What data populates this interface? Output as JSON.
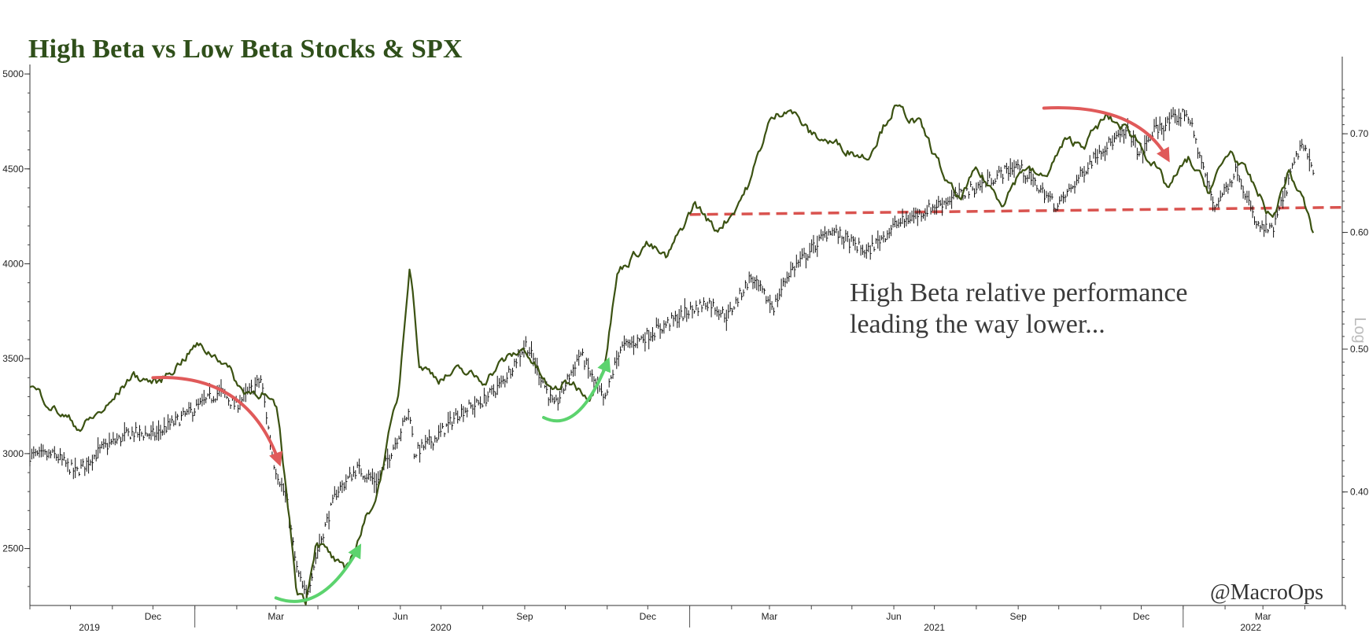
{
  "chart_data": {
    "type": "line",
    "title": "High Beta vs Low Beta Stocks & SPX",
    "left_axis": {
      "ticks": [
        2500,
        3000,
        3500,
        4000,
        4500,
        5000
      ],
      "range": [
        2200,
        5050
      ]
    },
    "right_axis": {
      "label": "Log",
      "scale": "log",
      "ticks": [
        0.4,
        0.5,
        0.6,
        0.7
      ],
      "tick_labels": [
        "0.40",
        "0.50",
        "0.60",
        "0.70"
      ],
      "range": [
        0.335,
        0.78
      ]
    },
    "x_axis": {
      "range": [
        "2019-09-01",
        "2022-05-01"
      ],
      "month_ticks": [
        {
          "date": "2019-12-01",
          "label": "Dec"
        },
        {
          "date": "2020-03-01",
          "label": "Mar"
        },
        {
          "date": "2020-06-01",
          "label": "Jun"
        },
        {
          "date": "2020-09-01",
          "label": "Sep"
        },
        {
          "date": "2020-12-01",
          "label": "Dec"
        },
        {
          "date": "2021-03-01",
          "label": "Mar"
        },
        {
          "date": "2021-06-01",
          "label": "Jun"
        },
        {
          "date": "2021-09-01",
          "label": "Sep"
        },
        {
          "date": "2021-12-01",
          "label": "Dec"
        },
        {
          "date": "2022-03-01",
          "label": "Mar"
        }
      ],
      "year_labels": [
        {
          "date": "2019-10-15",
          "label": "2019"
        },
        {
          "date": "2020-07-01",
          "label": "2020"
        },
        {
          "date": "2021-07-01",
          "label": "2021"
        },
        {
          "date": "2022-02-20",
          "label": "2022"
        }
      ]
    },
    "series": [
      {
        "role": "SPX bars (left axis)",
        "color": "#111111",
        "points": [
          [
            "2019-09-01",
            2990
          ],
          [
            "2019-09-20",
            2990
          ],
          [
            "2019-10-05",
            2900
          ],
          [
            "2019-10-25",
            3030
          ],
          [
            "2019-11-15",
            3110
          ],
          [
            "2019-12-03",
            3100
          ],
          [
            "2019-12-31",
            3230
          ],
          [
            "2020-01-20",
            3330
          ],
          [
            "2020-01-31",
            3250
          ],
          [
            "2020-02-19",
            3390
          ],
          [
            "2020-02-28",
            2960
          ],
          [
            "2020-03-09",
            2750
          ],
          [
            "2020-03-16",
            2400
          ],
          [
            "2020-03-23",
            2240
          ],
          [
            "2020-04-01",
            2500
          ],
          [
            "2020-04-15",
            2800
          ],
          [
            "2020-04-30",
            2920
          ],
          [
            "2020-05-15",
            2850
          ],
          [
            "2020-06-08",
            3230
          ],
          [
            "2020-06-11",
            3000
          ],
          [
            "2020-06-30",
            3100
          ],
          [
            "2020-07-15",
            3220
          ],
          [
            "2020-07-31",
            3270
          ],
          [
            "2020-08-15",
            3370
          ],
          [
            "2020-09-02",
            3580
          ],
          [
            "2020-09-23",
            3240
          ],
          [
            "2020-10-12",
            3530
          ],
          [
            "2020-10-30",
            3270
          ],
          [
            "2020-11-10",
            3550
          ],
          [
            "2020-11-30",
            3620
          ],
          [
            "2020-12-31",
            3750
          ],
          [
            "2021-01-15",
            3800
          ],
          [
            "2021-01-29",
            3720
          ],
          [
            "2021-02-15",
            3930
          ],
          [
            "2021-03-04",
            3770
          ],
          [
            "2021-03-15",
            3950
          ],
          [
            "2021-04-15",
            4180
          ],
          [
            "2021-05-12",
            4060
          ],
          [
            "2021-06-01",
            4200
          ],
          [
            "2021-06-30",
            4300
          ],
          [
            "2021-07-31",
            4400
          ],
          [
            "2021-08-31",
            4520
          ],
          [
            "2021-09-30",
            4300
          ],
          [
            "2021-10-31",
            4600
          ],
          [
            "2021-11-22",
            4700
          ],
          [
            "2021-11-30",
            4570
          ],
          [
            "2021-12-10",
            4700
          ],
          [
            "2022-01-04",
            4800
          ],
          [
            "2022-01-24",
            4300
          ],
          [
            "2022-02-10",
            4500
          ],
          [
            "2022-02-24",
            4200
          ],
          [
            "2022-03-08",
            4170
          ],
          [
            "2022-03-29",
            4630
          ],
          [
            "2022-04-08",
            4490
          ]
        ]
      },
      {
        "role": "High Beta relative performance (right axis)",
        "color": "#3b5212",
        "points": [
          [
            "2019-09-01",
            0.473
          ],
          [
            "2019-09-20",
            0.455
          ],
          [
            "2019-10-08",
            0.442
          ],
          [
            "2019-10-30",
            0.458
          ],
          [
            "2019-11-15",
            0.48
          ],
          [
            "2019-12-05",
            0.474
          ],
          [
            "2020-01-02",
            0.503
          ],
          [
            "2020-01-22",
            0.492
          ],
          [
            "2020-02-05",
            0.468
          ],
          [
            "2020-02-20",
            0.468
          ],
          [
            "2020-03-02",
            0.452
          ],
          [
            "2020-03-10",
            0.39
          ],
          [
            "2020-03-16",
            0.345
          ],
          [
            "2020-03-23",
            0.338
          ],
          [
            "2020-03-31",
            0.372
          ],
          [
            "2020-04-10",
            0.362
          ],
          [
            "2020-04-21",
            0.352
          ],
          [
            "2020-05-01",
            0.372
          ],
          [
            "2020-05-15",
            0.4
          ],
          [
            "2020-05-31",
            0.468
          ],
          [
            "2020-06-08",
            0.575
          ],
          [
            "2020-06-15",
            0.488
          ],
          [
            "2020-06-30",
            0.478
          ],
          [
            "2020-07-15",
            0.483
          ],
          [
            "2020-08-01",
            0.476
          ],
          [
            "2020-08-15",
            0.49
          ],
          [
            "2020-09-01",
            0.5
          ],
          [
            "2020-09-20",
            0.468
          ],
          [
            "2020-10-05",
            0.475
          ],
          [
            "2020-10-20",
            0.465
          ],
          [
            "2020-10-31",
            0.495
          ],
          [
            "2020-11-09",
            0.565
          ],
          [
            "2020-11-30",
            0.59
          ],
          [
            "2020-12-15",
            0.575
          ],
          [
            "2021-01-05",
            0.628
          ],
          [
            "2021-01-20",
            0.602
          ],
          [
            "2021-02-01",
            0.618
          ],
          [
            "2021-02-15",
            0.65
          ],
          [
            "2021-02-28",
            0.71
          ],
          [
            "2021-03-15",
            0.732
          ],
          [
            "2021-03-31",
            0.7
          ],
          [
            "2021-04-20",
            0.688
          ],
          [
            "2021-05-12",
            0.675
          ],
          [
            "2021-06-01",
            0.73
          ],
          [
            "2021-06-20",
            0.71
          ],
          [
            "2021-07-10",
            0.65
          ],
          [
            "2021-07-19",
            0.63
          ],
          [
            "2021-08-01",
            0.66
          ],
          [
            "2021-08-20",
            0.63
          ],
          [
            "2021-09-05",
            0.665
          ],
          [
            "2021-09-20",
            0.652
          ],
          [
            "2021-10-05",
            0.69
          ],
          [
            "2021-10-20",
            0.69
          ],
          [
            "2021-11-05",
            0.718
          ],
          [
            "2021-11-25",
            0.7
          ],
          [
            "2021-12-10",
            0.668
          ],
          [
            "2021-12-20",
            0.642
          ],
          [
            "2022-01-05",
            0.672
          ],
          [
            "2022-01-20",
            0.64
          ],
          [
            "2022-02-05",
            0.682
          ],
          [
            "2022-02-20",
            0.65
          ],
          [
            "2022-03-08",
            0.612
          ],
          [
            "2022-03-20",
            0.66
          ],
          [
            "2022-03-31",
            0.63
          ],
          [
            "2022-04-08",
            0.594
          ]
        ]
      }
    ],
    "reference_line": {
      "style": "dashed",
      "color": "#d9534f",
      "y_right": [
        0.617,
        0.624
      ],
      "x": [
        "2021-01-01",
        "2022-04-30"
      ]
    },
    "arrows": [
      {
        "color": "#e05a5a",
        "from": [
          "2019-12-01",
          3400
        ],
        "to": [
          "2020-03-03",
          2960
        ]
      },
      {
        "color": "#5cd36e",
        "from": [
          "2020-03-01",
          2240
        ],
        "to": [
          "2020-05-01",
          2500
        ]
      },
      {
        "color": "#5cd36e",
        "from": [
          "2020-09-15",
          3190
        ],
        "to": [
          "2020-11-01",
          3480
        ]
      },
      {
        "color": "#e05a5a",
        "from": [
          "2021-09-20",
          4820
        ],
        "to": [
          "2021-12-20",
          4560
        ]
      }
    ],
    "annotation": [
      "High Beta relative performance",
      "leading the way lower..."
    ],
    "credit": "@MacroOps"
  }
}
